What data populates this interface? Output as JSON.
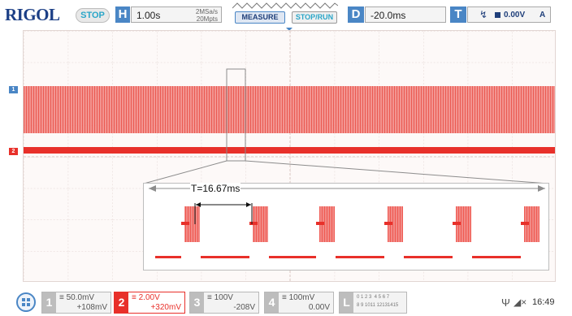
{
  "header": {
    "brand": "RIGOL",
    "run_state": "STOP",
    "horizontal": {
      "tag": "H",
      "timebase": "1.00s",
      "sample_rate": "2MSa/s",
      "memory_depth": "20Mpts"
    },
    "measure_label": "MEASURE",
    "stop_run_label": "STOP/RUN",
    "delay": {
      "tag": "D",
      "value": "-20.0ms"
    },
    "trigger": {
      "tag": "T",
      "level": "0.00V",
      "mode": "A"
    }
  },
  "markers": {
    "trigger_position": "T",
    "ch1": "1",
    "ch2": "2"
  },
  "zoom_inset": {
    "period_label": "T=16.67ms"
  },
  "footer": {
    "channels": [
      {
        "num": "1",
        "scale": "50.0mV",
        "offset": "+108mV"
      },
      {
        "num": "2",
        "scale": "2.00V",
        "offset": "+320mV"
      },
      {
        "num": "3",
        "scale": "100V",
        "offset": "-208V"
      },
      {
        "num": "4",
        "scale": "100mV",
        "offset": "0.00V"
      }
    ],
    "logic": {
      "tag": "L",
      "row1": "0 1 2 3  4 5 6 7",
      "row2": "8 9 1011 12131415"
    },
    "clock": "16:49"
  },
  "colors": {
    "ch2": "#e8302a",
    "ch1_band": "#f06a66",
    "accent_blue": "#4a86c5"
  }
}
